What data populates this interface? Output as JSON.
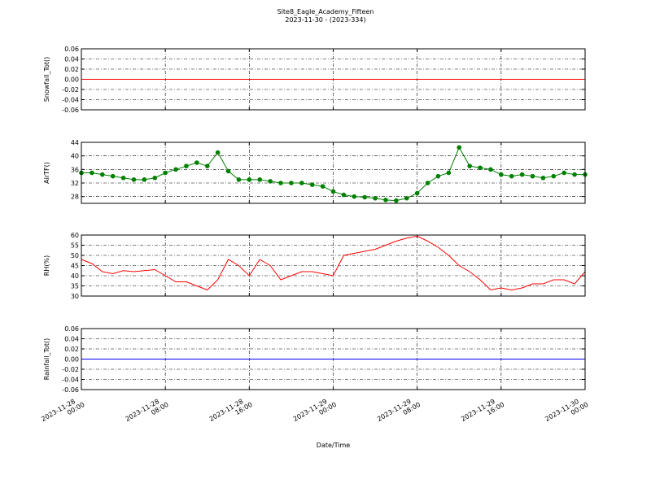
{
  "title": "Site8_Eagle_Academy_Fifteen",
  "subtitle": "2023-11-30 - (2023-334)",
  "chart_data": [
    {
      "type": "line",
      "ylabel": "Snowfall_Tot()",
      "grid": true,
      "x": [
        "2023-11-28 00:00",
        "2023-11-30 00:00"
      ],
      "series": [
        {
          "color": "#ff0000",
          "values": [
            0,
            0
          ]
        }
      ],
      "xlim": [
        "2023-11-28 00:00",
        "2023-11-30 00:00"
      ],
      "xticks": [
        "2023-11-28 00:00",
        "2023-11-28 08:00",
        "2023-11-28 16:00",
        "2023-11-29 00:00",
        "2023-11-29 08:00",
        "2023-11-29 16:00",
        "2023-11-30 00:00"
      ],
      "ylim": [
        -0.06,
        0.06
      ],
      "yticks": [
        -0.06,
        -0.04,
        -0.02,
        {
          "value": 0,
          "label": "0.00"
        },
        0.02,
        0.04,
        0.06
      ]
    },
    {
      "type": "line",
      "ylabel": "AirTF()",
      "grid": true,
      "markers": true,
      "x": [
        "2023-11-28 00:00",
        "2023-11-28 01:00",
        "2023-11-28 02:00",
        "2023-11-28 03:00",
        "2023-11-28 04:00",
        "2023-11-28 05:00",
        "2023-11-28 06:00",
        "2023-11-28 07:00",
        "2023-11-28 08:00",
        "2023-11-28 09:00",
        "2023-11-28 10:00",
        "2023-11-28 11:00",
        "2023-11-28 12:00",
        "2023-11-28 13:00",
        "2023-11-28 14:00",
        "2023-11-28 15:00",
        "2023-11-28 16:00",
        "2023-11-28 17:00",
        "2023-11-28 18:00",
        "2023-11-28 19:00",
        "2023-11-28 20:00",
        "2023-11-28 21:00",
        "2023-11-28 22:00",
        "2023-11-28 23:00",
        "2023-11-29 00:00",
        "2023-11-29 01:00",
        "2023-11-29 02:00",
        "2023-11-29 03:00",
        "2023-11-29 04:00",
        "2023-11-29 05:00",
        "2023-11-29 06:00",
        "2023-11-29 07:00",
        "2023-11-29 08:00",
        "2023-11-29 09:00",
        "2023-11-29 10:00",
        "2023-11-29 11:00",
        "2023-11-29 12:00",
        "2023-11-29 13:00",
        "2023-11-29 14:00",
        "2023-11-29 15:00",
        "2023-11-29 16:00",
        "2023-11-29 17:00",
        "2023-11-29 18:00",
        "2023-11-29 19:00",
        "2023-11-29 20:00",
        "2023-11-29 21:00",
        "2023-11-29 22:00",
        "2023-11-29 23:00",
        "2023-11-30 00:00"
      ],
      "series": [
        {
          "color": "#008000",
          "values": [
            35,
            35,
            34.5,
            34,
            33.5,
            33,
            33,
            33.5,
            35,
            36,
            37,
            38,
            37,
            41,
            35.5,
            33,
            33,
            33,
            32.5,
            32,
            32,
            32,
            31.5,
            31,
            29.5,
            28.5,
            28,
            27.8,
            27.5,
            27,
            26.8,
            27.5,
            29,
            32,
            34,
            35,
            42.5,
            37,
            36.5,
            36,
            34.5,
            34,
            34.5,
            34,
            33.5,
            34,
            35,
            34.5,
            34.5
          ]
        }
      ],
      "xlim": [
        "2023-11-28 00:00",
        "2023-11-30 00:00"
      ],
      "xticks": [
        "2023-11-28 00:00",
        "2023-11-28 08:00",
        "2023-11-28 16:00",
        "2023-11-29 00:00",
        "2023-11-29 08:00",
        "2023-11-29 16:00",
        "2023-11-30 00:00"
      ],
      "ylim": [
        26,
        44
      ],
      "yticks": [
        28,
        32,
        36,
        40,
        44
      ]
    },
    {
      "type": "line",
      "ylabel": "RH(%)",
      "grid": true,
      "x": [
        "2023-11-28 00:00",
        "2023-11-28 01:00",
        "2023-11-28 02:00",
        "2023-11-28 03:00",
        "2023-11-28 04:00",
        "2023-11-28 05:00",
        "2023-11-28 06:00",
        "2023-11-28 07:00",
        "2023-11-28 08:00",
        "2023-11-28 09:00",
        "2023-11-28 10:00",
        "2023-11-28 11:00",
        "2023-11-28 12:00",
        "2023-11-28 13:00",
        "2023-11-28 14:00",
        "2023-11-28 15:00",
        "2023-11-28 16:00",
        "2023-11-28 17:00",
        "2023-11-28 18:00",
        "2023-11-28 19:00",
        "2023-11-28 20:00",
        "2023-11-28 21:00",
        "2023-11-28 22:00",
        "2023-11-28 23:00",
        "2023-11-29 00:00",
        "2023-11-29 01:00",
        "2023-11-29 02:00",
        "2023-11-29 03:00",
        "2023-11-29 04:00",
        "2023-11-29 05:00",
        "2023-11-29 06:00",
        "2023-11-29 07:00",
        "2023-11-29 08:00",
        "2023-11-29 09:00",
        "2023-11-29 10:00",
        "2023-11-29 11:00",
        "2023-11-29 12:00",
        "2023-11-29 13:00",
        "2023-11-29 14:00",
        "2023-11-29 15:00",
        "2023-11-29 16:00",
        "2023-11-29 17:00",
        "2023-11-29 18:00",
        "2023-11-29 19:00",
        "2023-11-29 20:00",
        "2023-11-29 21:00",
        "2023-11-29 22:00",
        "2023-11-29 23:00",
        "2023-11-30 00:00"
      ],
      "series": [
        {
          "color": "#ff0000",
          "values": [
            48,
            46,
            42,
            41,
            42.5,
            42,
            42.5,
            43,
            40,
            37,
            37,
            35,
            33,
            38,
            48,
            45,
            40,
            48,
            45,
            38,
            40,
            42,
            42,
            41,
            40,
            50,
            51,
            52,
            53,
            55,
            57,
            58.5,
            59.5,
            57,
            54,
            50,
            45,
            42,
            38,
            33,
            34,
            33,
            34,
            36,
            36,
            38,
            38,
            36,
            42
          ]
        }
      ],
      "xlim": [
        "2023-11-28 00:00",
        "2023-11-30 00:00"
      ],
      "xticks": [
        "2023-11-28 00:00",
        "2023-11-28 08:00",
        "2023-11-28 16:00",
        "2023-11-29 00:00",
        "2023-11-29 08:00",
        "2023-11-29 16:00",
        "2023-11-30 00:00"
      ],
      "ylim": [
        30,
        60
      ],
      "yticks": [
        30,
        35,
        40,
        45,
        50,
        55,
        60
      ]
    },
    {
      "type": "line",
      "ylabel": "Rainfall_Tot()",
      "xlabel": "Date/Time",
      "grid": true,
      "xtick_labels": true,
      "x": [
        "2023-11-28 00:00",
        "2023-11-30 00:00"
      ],
      "series": [
        {
          "color": "#0000ff",
          "values": [
            0,
            0
          ]
        }
      ],
      "xlim": [
        "2023-11-28 00:00",
        "2023-11-30 00:00"
      ],
      "xticks": [
        "2023-11-28 00:00",
        "2023-11-28 08:00",
        "2023-11-28 16:00",
        "2023-11-29 00:00",
        "2023-11-29 08:00",
        "2023-11-29 16:00",
        "2023-11-30 00:00"
      ],
      "ylim": [
        -0.06,
        0.06
      ],
      "yticks": [
        -0.06,
        -0.04,
        -0.02,
        {
          "value": 0,
          "label": "0.00"
        },
        0.02,
        0.04,
        0.06
      ]
    }
  ]
}
